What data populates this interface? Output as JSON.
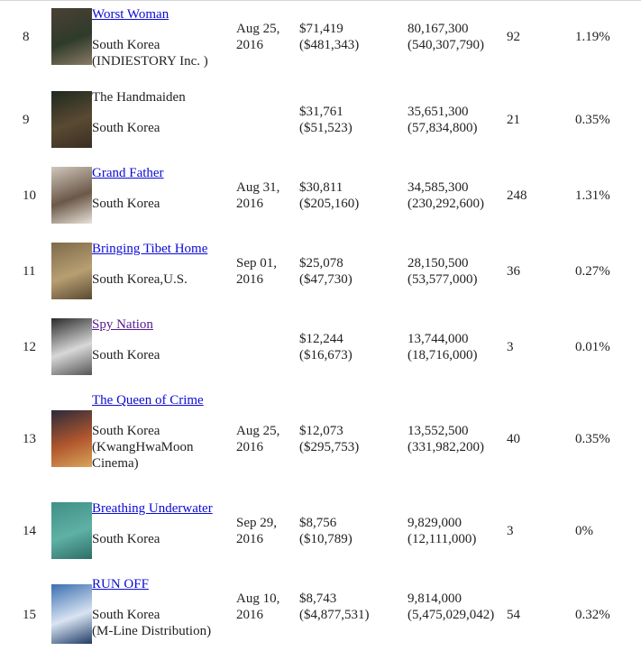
{
  "rows": [
    {
      "rank": "8",
      "title": "Worst Woman",
      "linked": true,
      "country_lines": [
        "South Korea",
        "(INDIESTORY Inc. )"
      ],
      "date_lines": [
        "Aug 25,",
        "2016"
      ],
      "revenue_lines": [
        "$71,419",
        "($481,343)"
      ],
      "total_lines": [
        "80,167,300",
        "(540,307,790)"
      ],
      "screens": "92",
      "share": "1.19%",
      "poster_colors": [
        "#4a4036",
        "#2f3b2a",
        "#8a7a66"
      ]
    },
    {
      "rank": "9",
      "title": "The Handmaiden",
      "linked": false,
      "country_lines": [
        "South Korea"
      ],
      "date_lines": [],
      "revenue_lines": [
        "$31,761",
        "($51,523)"
      ],
      "total_lines": [
        "35,651,300",
        "(57,834,800)"
      ],
      "screens": "21",
      "share": "0.35%",
      "poster_colors": [
        "#1e2a1f",
        "#5a4a32",
        "#3a2e24"
      ]
    },
    {
      "rank": "10",
      "title": "Grand Father",
      "linked": true,
      "country_lines": [
        "South Korea"
      ],
      "date_lines": [
        "Aug 31,",
        "2016"
      ],
      "revenue_lines": [
        "$30,811",
        "($205,160)"
      ],
      "total_lines": [
        "34,585,300",
        "(230,292,600)"
      ],
      "screens": "248",
      "share": "1.31%",
      "poster_colors": [
        "#cfc7bb",
        "#6b5848",
        "#e8e2d8"
      ]
    },
    {
      "rank": "11",
      "title": "Bringing Tibet Home",
      "linked": true,
      "country_lines": [
        "South Korea,U.S."
      ],
      "date_lines": [
        "Sep 01,",
        "2016"
      ],
      "revenue_lines": [
        "$25,078",
        "($47,730)"
      ],
      "total_lines": [
        "28,150,500",
        "(53,577,000)"
      ],
      "screens": "36",
      "share": "0.27%",
      "poster_colors": [
        "#7d6a4a",
        "#b79f72",
        "#5a4a32"
      ]
    },
    {
      "rank": "12",
      "title": "Spy Nation",
      "linked": true,
      "visited": true,
      "country_lines": [
        "South Korea"
      ],
      "date_lines": [],
      "revenue_lines": [
        "$12,244",
        "($16,673)"
      ],
      "total_lines": [
        "13,744,000",
        "(18,716,000)"
      ],
      "screens": "3",
      "share": "0.01%",
      "poster_colors": [
        "#2a2a2a",
        "#d8d8d8",
        "#555555"
      ]
    },
    {
      "rank": "13",
      "title": "The Queen of Crime",
      "linked": true,
      "country_lines": [
        "South Korea",
        "(KwangHwaMoon",
        "Cinema)"
      ],
      "date_lines": [
        "Aug 25,",
        "2016"
      ],
      "revenue_lines": [
        "$12,073",
        "($295,753)"
      ],
      "total_lines": [
        "13,552,500",
        "(331,982,200)"
      ],
      "screens": "40",
      "share": "0.35%",
      "poster_colors": [
        "#2b2a3a",
        "#b0562e",
        "#d9a55a"
      ]
    },
    {
      "rank": "14",
      "title": "Breathing Underwater",
      "linked": true,
      "country_lines": [
        "South Korea"
      ],
      "date_lines": [
        "Sep 29,",
        "2016"
      ],
      "revenue_lines": [
        "$8,756",
        "($10,789)"
      ],
      "total_lines": [
        "9,829,000",
        "(12,111,000)"
      ],
      "screens": "3",
      "share": "0%",
      "poster_colors": [
        "#3f8f86",
        "#5fb0a5",
        "#2c6e66"
      ]
    },
    {
      "rank": "15",
      "title": "RUN OFF",
      "linked": true,
      "country_lines": [
        "South Korea",
        "(M-Line Distribution)"
      ],
      "date_lines": [
        "Aug 10,",
        "2016"
      ],
      "revenue_lines": [
        "$8,743",
        "($4,877,531)"
      ],
      "total_lines": [
        "9,814,000",
        "(5,475,029,042)"
      ],
      "screens": "54",
      "share": "0.32%",
      "poster_colors": [
        "#3a6fb0",
        "#d9e4f2",
        "#1f3b66"
      ]
    }
  ]
}
